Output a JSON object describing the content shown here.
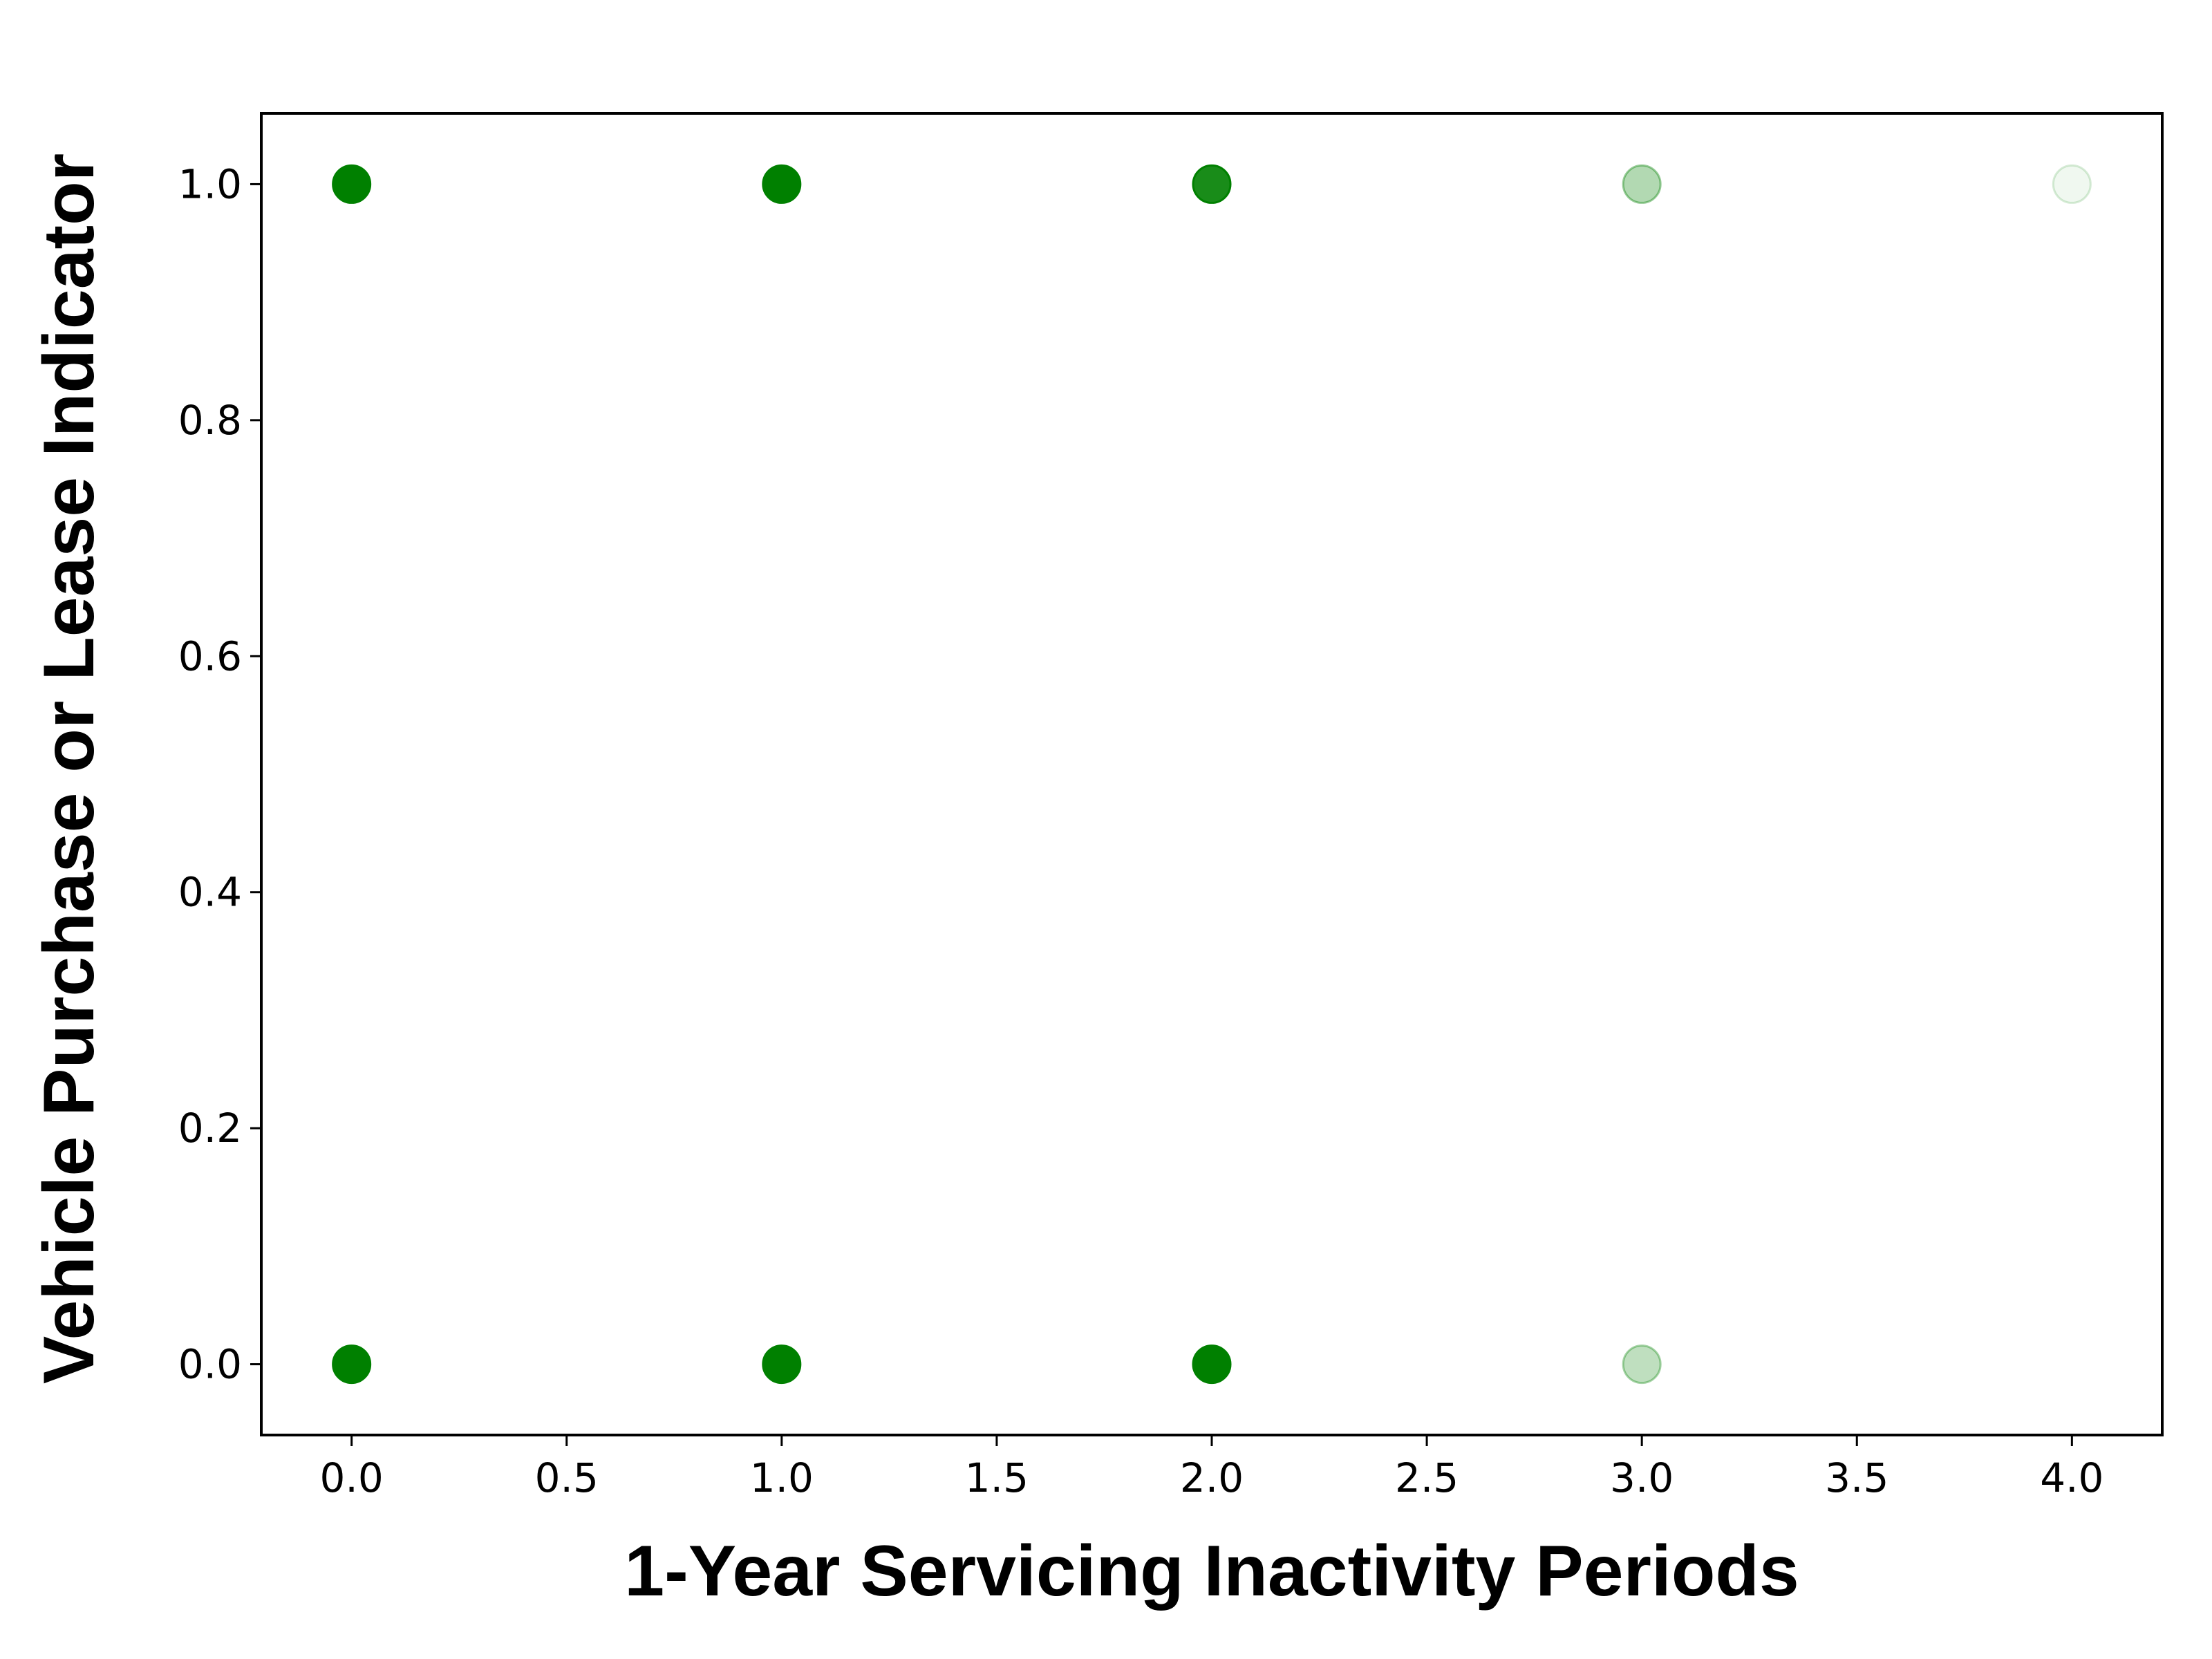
{
  "chart_data": {
    "type": "scatter",
    "title": "",
    "xlabel": "1-Year Servicing Inactivity Periods",
    "ylabel": "Vehicle Purchase or Lease Indicator",
    "xlim": [
      -0.21,
      4.21
    ],
    "ylim": [
      -0.06,
      1.06
    ],
    "x_ticks": [
      "0.0",
      "0.5",
      "1.0",
      "1.5",
      "2.0",
      "2.5",
      "3.0",
      "3.5",
      "4.0"
    ],
    "y_ticks": [
      "0.0",
      "0.2",
      "0.4",
      "0.6",
      "0.8",
      "1.0"
    ],
    "x_tick_values": [
      0,
      0.5,
      1,
      1.5,
      2,
      2.5,
      3,
      3.5,
      4
    ],
    "y_tick_values": [
      0,
      0.2,
      0.4,
      0.6,
      0.8,
      1
    ],
    "grid": false,
    "marker_color": "#008000",
    "points": [
      {
        "x": 0,
        "y": 1,
        "opacity": 1.0
      },
      {
        "x": 1,
        "y": 1,
        "opacity": 1.0
      },
      {
        "x": 2,
        "y": 1,
        "opacity": 0.9
      },
      {
        "x": 3,
        "y": 1,
        "opacity": 0.3
      },
      {
        "x": 4,
        "y": 1,
        "opacity": 0.06
      },
      {
        "x": 0,
        "y": 0,
        "opacity": 1.0
      },
      {
        "x": 1,
        "y": 0,
        "opacity": 1.0
      },
      {
        "x": 2,
        "y": 0,
        "opacity": 1.0
      },
      {
        "x": 3,
        "y": 0,
        "opacity": 0.25
      }
    ]
  }
}
